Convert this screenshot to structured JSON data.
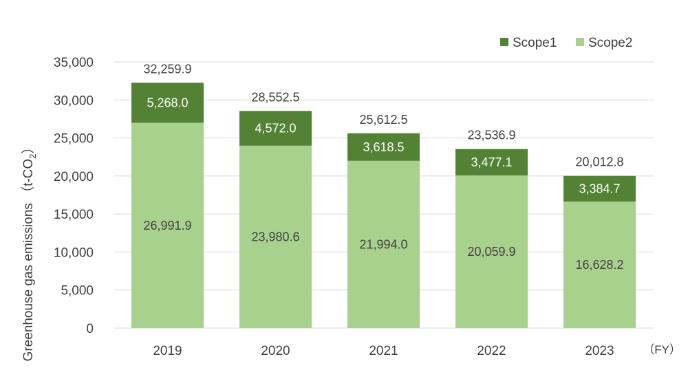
{
  "chart_data": {
    "type": "bar",
    "stacked": true,
    "categories": [
      "2019",
      "2020",
      "2021",
      "2022",
      "2023"
    ],
    "series": [
      {
        "name": "Scope1",
        "color": "#548235",
        "values": [
          5268.0,
          4572.0,
          3618.5,
          3477.1,
          3384.7
        ],
        "labels": [
          "5,268.0",
          "4,572.0",
          "3,618.5",
          "3,477.1",
          "3,384.7"
        ]
      },
      {
        "name": "Scope2",
        "color": "#a9d18e",
        "values": [
          26991.9,
          23980.6,
          21994.0,
          20059.9,
          16628.2
        ],
        "labels": [
          "26,991.9",
          "23,980.6",
          "21,994.0",
          "20,059.9",
          "16,628.2"
        ]
      }
    ],
    "totals": [
      32259.9,
      28552.5,
      25612.5,
      23536.9,
      20012.8
    ],
    "total_labels": [
      "32,259.9",
      "28,552.5",
      "25,612.5",
      "23,536.9",
      "20,012.8"
    ],
    "ylim": [
      0,
      35000
    ],
    "yticks": [
      0,
      5000,
      10000,
      15000,
      20000,
      25000,
      30000,
      35000
    ],
    "ytick_labels": [
      "0",
      "5,000",
      "10,000",
      "15,000",
      "20,000",
      "25,000",
      "30,000",
      "35,000"
    ],
    "ylabel_main": "Greenhouse gas emissions （t-CO",
    "ylabel_sub": "2",
    "ylabel_close": "）",
    "x_unit": "（FY）",
    "grid": true,
    "legend_position": "top-right"
  }
}
